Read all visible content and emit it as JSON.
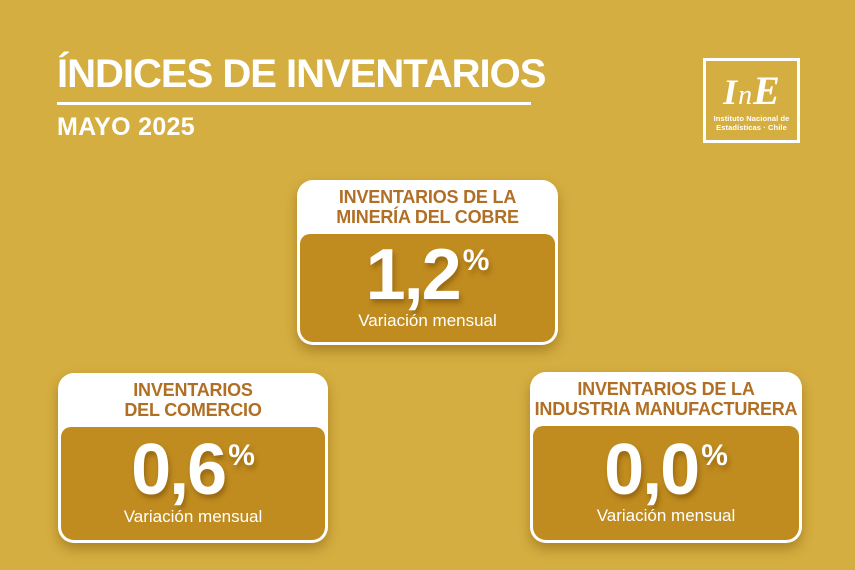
{
  "header": {
    "title": "ÍNDICES DE INVENTARIOS",
    "subtitle": "MAYO 2025"
  },
  "logo": {
    "mark": [
      "I",
      "n",
      "E"
    ],
    "line1": "Instituto Nacional de",
    "line2": "Estadísticas · Chile"
  },
  "cards": [
    {
      "id": "mineria-del-cobre",
      "title_lines": [
        "INVENTARIOS DE LA",
        "MINERÍA DEL COBRE"
      ],
      "value": "1,2",
      "unit": "%",
      "caption": "Variación mensual"
    },
    {
      "id": "comercio",
      "title_lines": [
        "INVENTARIOS",
        "DEL COMERCIO"
      ],
      "value": "0,6",
      "unit": "%",
      "caption": "Variación mensual"
    },
    {
      "id": "industria-manufacturera",
      "title_lines": [
        "INVENTARIOS DE LA",
        "INDUSTRIA MANUFACTURERA"
      ],
      "value": "0,0",
      "unit": "%",
      "caption": "Variación mensual"
    }
  ],
  "colors": {
    "background": "#d5ae41",
    "card_gold": "#c08c1f",
    "card_title_brown": "#b06f24",
    "text_white": "#ffffff"
  },
  "chart_data": {
    "type": "table",
    "title": "ÍNDICES DE INVENTARIOS",
    "subtitle": "MAYO 2025",
    "categories": [
      "Inventarios de la Minería del Cobre",
      "Inventarios del Comercio",
      "Inventarios de la Industria Manufacturera"
    ],
    "values": [
      1.2,
      0.6,
      0.0
    ],
    "ylabel": "Variación mensual (%)",
    "value_labels_as_shown": [
      "1,2%",
      "0,6%",
      "0,0%"
    ]
  }
}
